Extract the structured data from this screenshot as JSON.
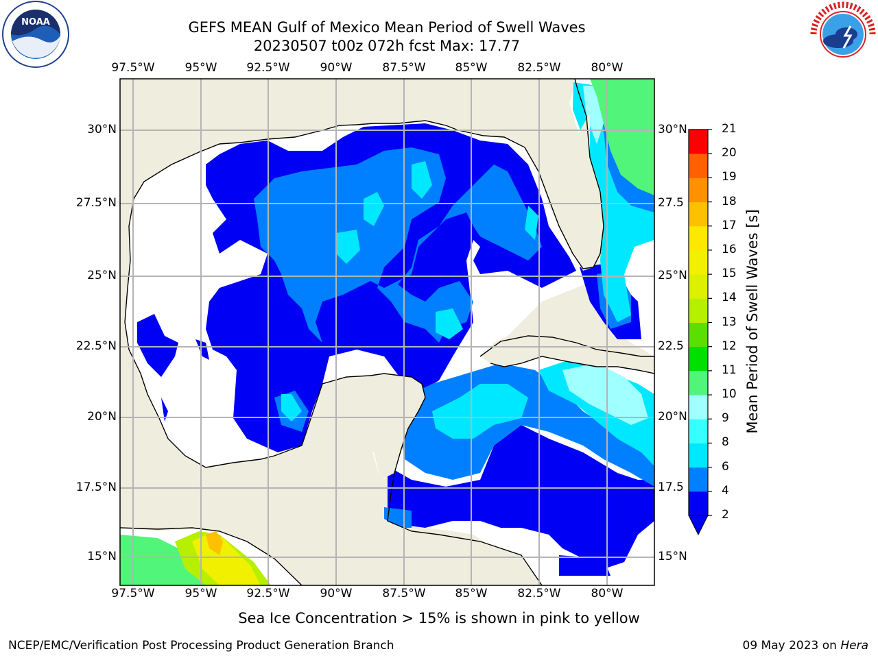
{
  "header": {
    "title_line1": "GEFS MEAN Gulf of Mexico Mean Period of Swell Waves",
    "title_line2": "20230507 t00z 072h fcst   Max: 17.77"
  },
  "logos": {
    "left": {
      "name": "NOAA",
      "ring_text": "NATIONAL OCEANIC AND ATMOSPHERIC ADMINISTRATION · U.S. DEPARTMENT OF COMMERCE"
    },
    "right": {
      "name": "NATIONAL WEATHER SERVICE"
    }
  },
  "map": {
    "lon_labels": [
      "97.5°W",
      "95°W",
      "92.5°W",
      "90°W",
      "87.5°W",
      "85°W",
      "82.5°W",
      "80°W"
    ],
    "lat_labels_left": [
      "30°N",
      "27.5°N",
      "25°N",
      "22.5°N",
      "20°N",
      "17.5°N",
      "15°N"
    ],
    "lat_labels_right": [
      "30°N",
      "27.5",
      "25°N",
      "22.5",
      "20°N",
      "17.5",
      "15°N"
    ],
    "land_color": "#efedde",
    "grid_color": "#b4b4b4"
  },
  "colorbar": {
    "title": "Mean Period of Swell Waves [s]",
    "ticks": [
      "2",
      "4",
      "6",
      "8",
      "9",
      "10",
      "11",
      "12",
      "13",
      "14",
      "15",
      "16",
      "17",
      "18",
      "19",
      "20",
      "21"
    ],
    "colors": [
      "#0000f5",
      "#0080ff",
      "#00e8ff",
      "#38ffff",
      "#a0ffff",
      "#50f57a",
      "#00e000",
      "#5ae000",
      "#b6f000",
      "#dcf000",
      "#f0f000",
      "#ffe800",
      "#ffc000",
      "#ff9000",
      "#ff6000",
      "#ff3000",
      "#ff0000"
    ],
    "under_color": "#0000f5"
  },
  "caption": "Sea Ice Concentration > 15% is shown in pink to yellow",
  "footer": {
    "left": "NCEP/EMC/Verification Post Processing Product Generation Branch",
    "right_date": "09 May 2023 on ",
    "right_host": "Hera"
  }
}
